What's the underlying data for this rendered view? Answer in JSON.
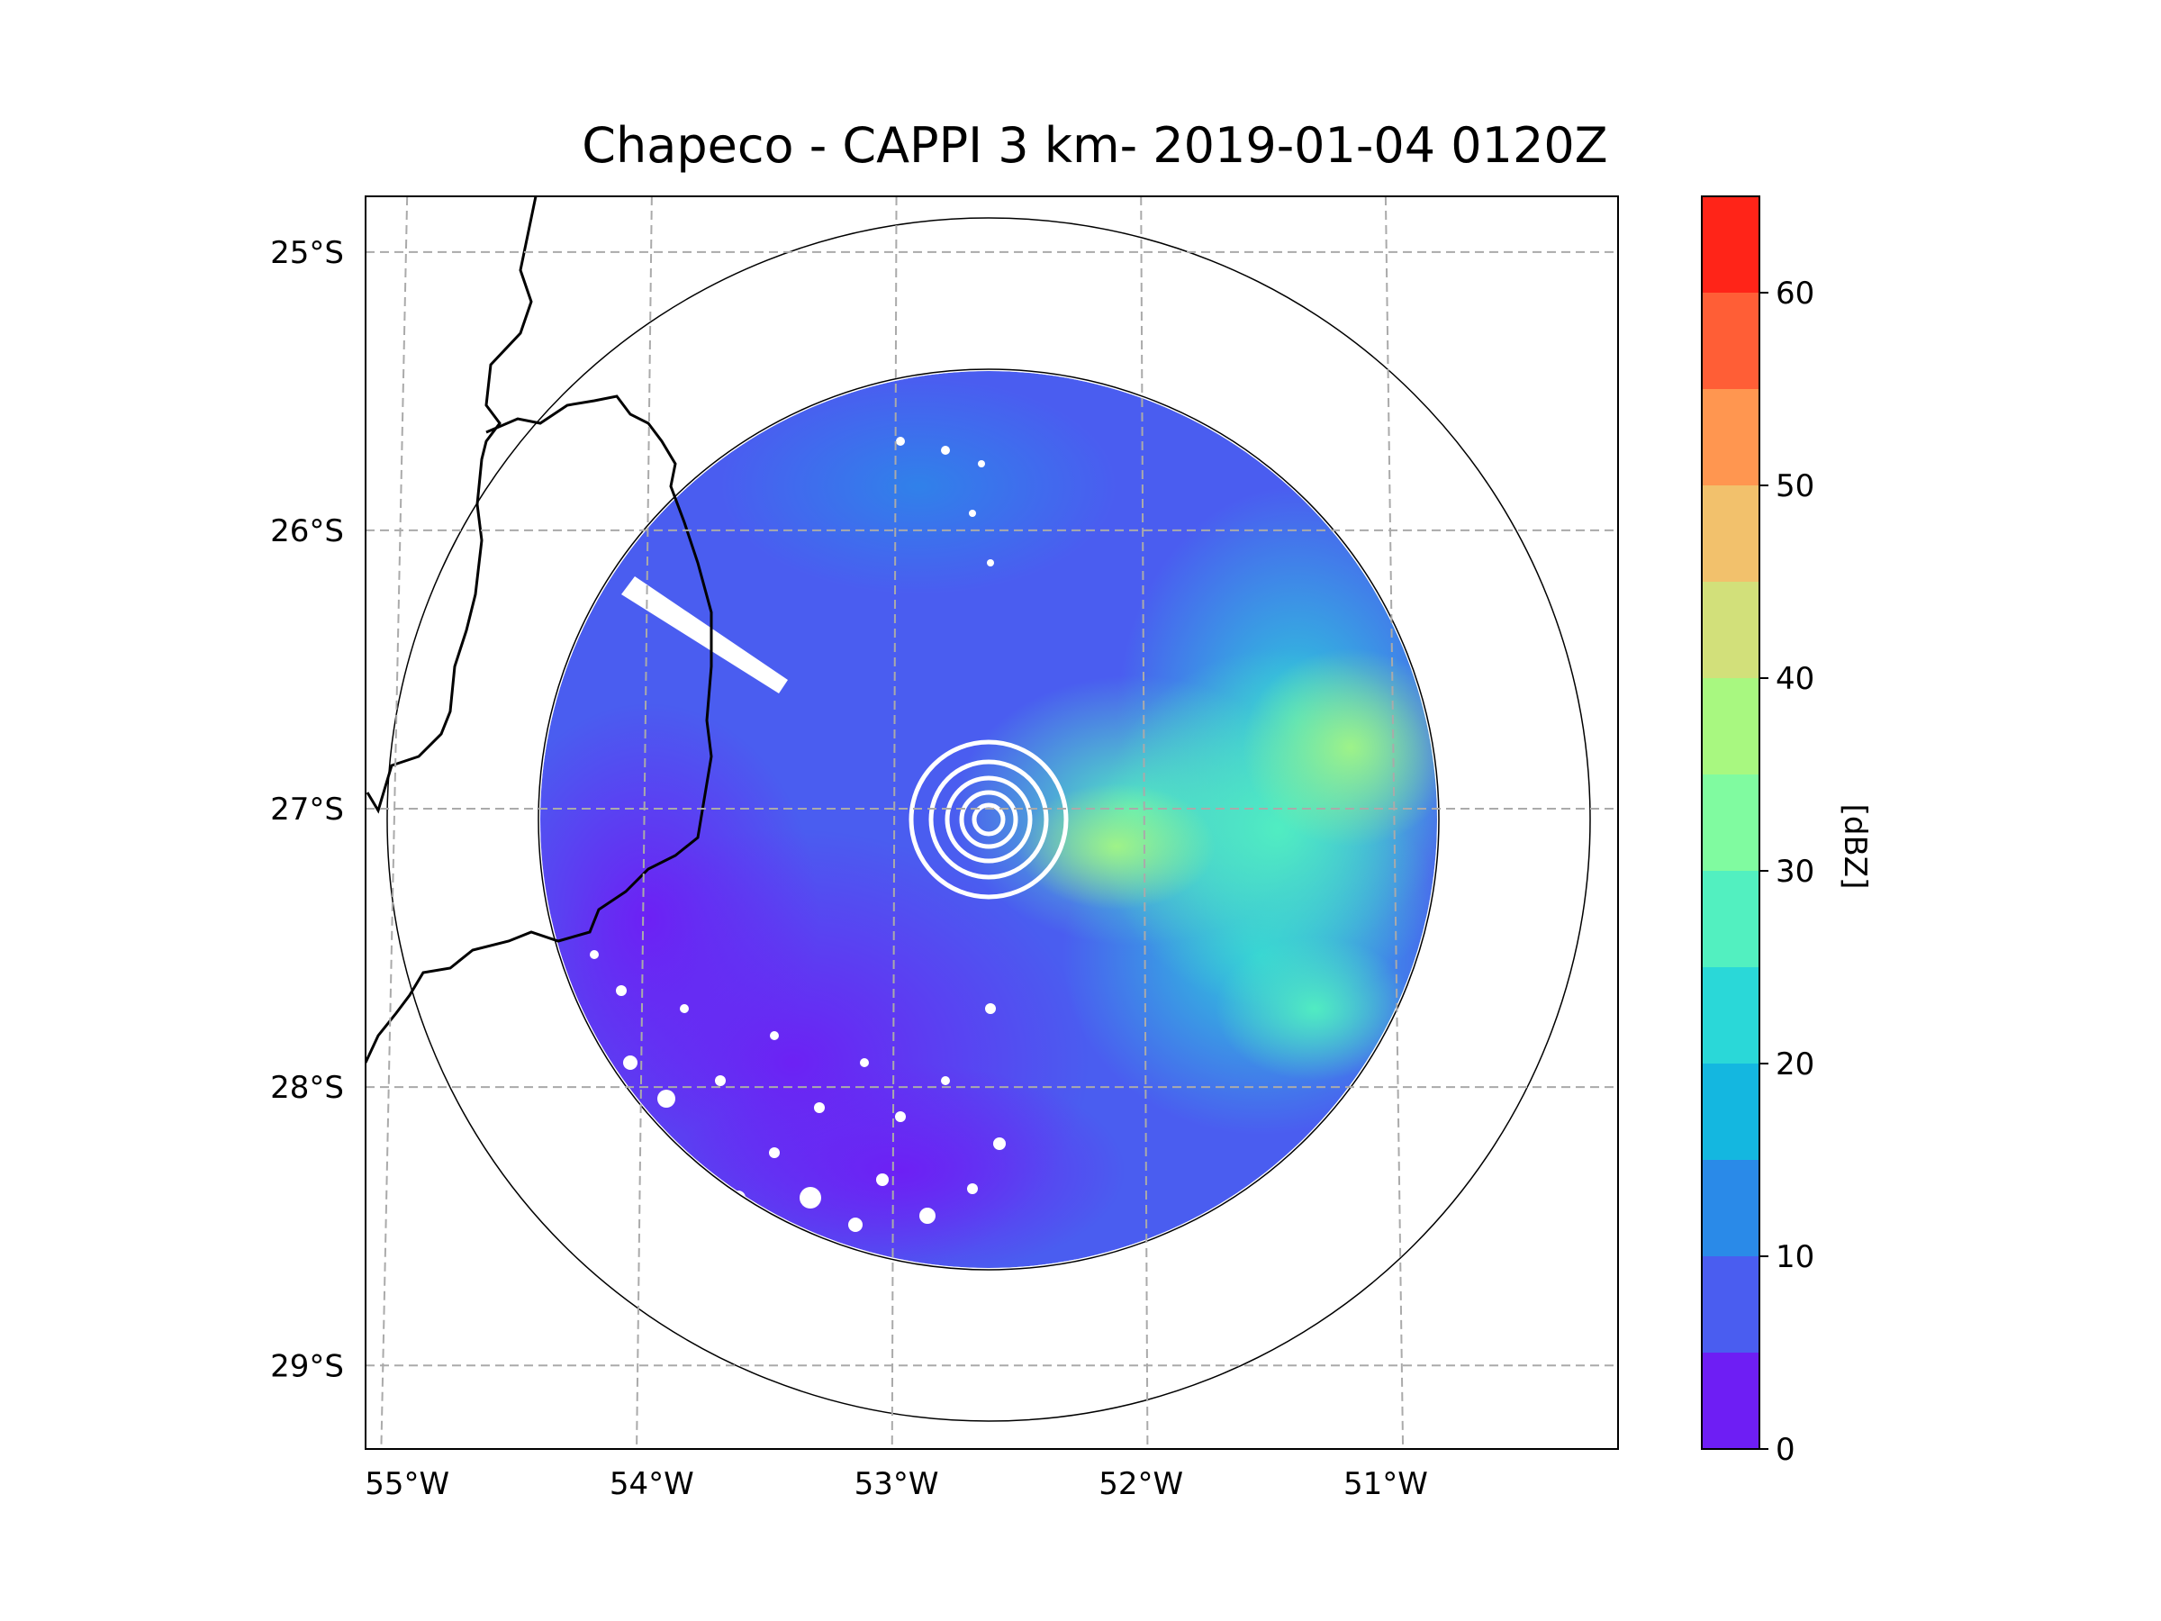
{
  "chart_data": {
    "type": "heatmap",
    "title": "Chapeco - CAPPI 3 km- 2019-01-04 0120Z",
    "product": "CAPPI",
    "station": "Chapeco",
    "xlabel": "",
    "ylabel": "",
    "x_ticks": [
      "55°W",
      "54°W",
      "53°W",
      "52°W",
      "51°W"
    ],
    "x_tick_values": [
      -55,
      -54,
      -53,
      -52,
      -51
    ],
    "y_ticks": [
      "25°S",
      "26°S",
      "27°S",
      "28°S",
      "29°S"
    ],
    "y_tick_values": [
      -25,
      -26,
      -27,
      -28,
      -29
    ],
    "xlim": [
      -55.17,
      -50.05
    ],
    "ylim": [
      -29.3,
      -24.8
    ],
    "radar_center": {
      "lon": -52.6,
      "lat": -27.0
    },
    "grid": true,
    "colorbar": {
      "label": "[dBZ]",
      "ticks": [
        0,
        10,
        20,
        30,
        40,
        50,
        60
      ],
      "bounds": [
        0,
        5,
        10,
        15,
        20,
        25,
        30,
        35,
        40,
        45,
        50,
        55,
        60,
        65
      ],
      "colors": [
        "#6e1ef4",
        "#4a5df0",
        "#2a8ae8",
        "#14b7e0",
        "#2ad8d8",
        "#52f0c0",
        "#80fba0",
        "#a8f880",
        "#d2e07a",
        "#f2c16c",
        "#ff9650",
        "#ff5e36",
        "#ff2418"
      ]
    },
    "echo_summary": [
      {
        "region": "east half",
        "dbz_range": [
          15,
          35
        ]
      },
      {
        "region": "north / west",
        "dbz_range": [
          5,
          15
        ]
      },
      {
        "region": "south-west",
        "dbz_range": [
          0,
          5
        ]
      }
    ]
  }
}
